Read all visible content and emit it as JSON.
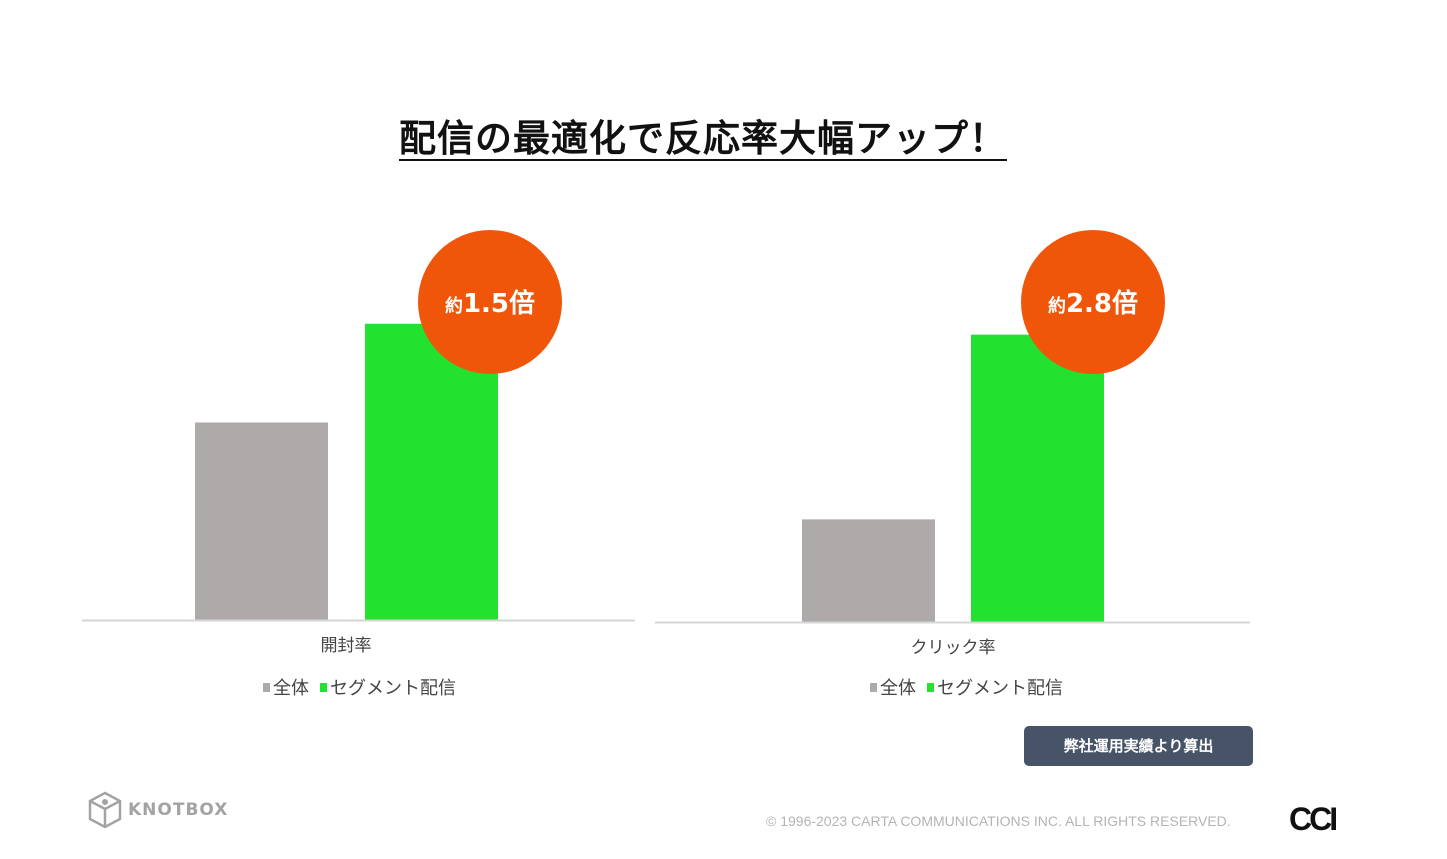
{
  "title": "配信の最適化で反応率大幅アップ！",
  "source_note": "弊社運用実績より算出",
  "footer": {
    "brand": "KNOTBOX",
    "copyright": "© 1996-2023 CARTA COMMUNICATIONS INC.  ALL RIGHTS RESERVED.",
    "corp_logo": "CCI"
  },
  "colors": {
    "overall": "#aeaaaa",
    "segment": "#22e12f",
    "badge": "#f0560a",
    "source_bg": "#475366"
  },
  "chart_data": [
    {
      "type": "bar",
      "categories": [
        "開封率"
      ],
      "series": [
        {
          "name": "全体",
          "values": [
            1.0
          ]
        },
        {
          "name": "セグメント配信",
          "values": [
            1.5
          ]
        }
      ],
      "annotation": {
        "prefix": "約",
        "value": "1.5倍"
      },
      "legend": [
        "全体",
        "セグメント配信"
      ],
      "ylim": [
        0,
        2.0
      ]
    },
    {
      "type": "bar",
      "categories": [
        "クリック率"
      ],
      "series": [
        {
          "name": "全体",
          "values": [
            1.0
          ]
        },
        {
          "name": "セグメント配信",
          "values": [
            2.8
          ]
        }
      ],
      "annotation": {
        "prefix": "約",
        "value": "2.8倍"
      },
      "legend": [
        "全体",
        "セグメント配信"
      ],
      "ylim": [
        0,
        3.8
      ]
    }
  ]
}
